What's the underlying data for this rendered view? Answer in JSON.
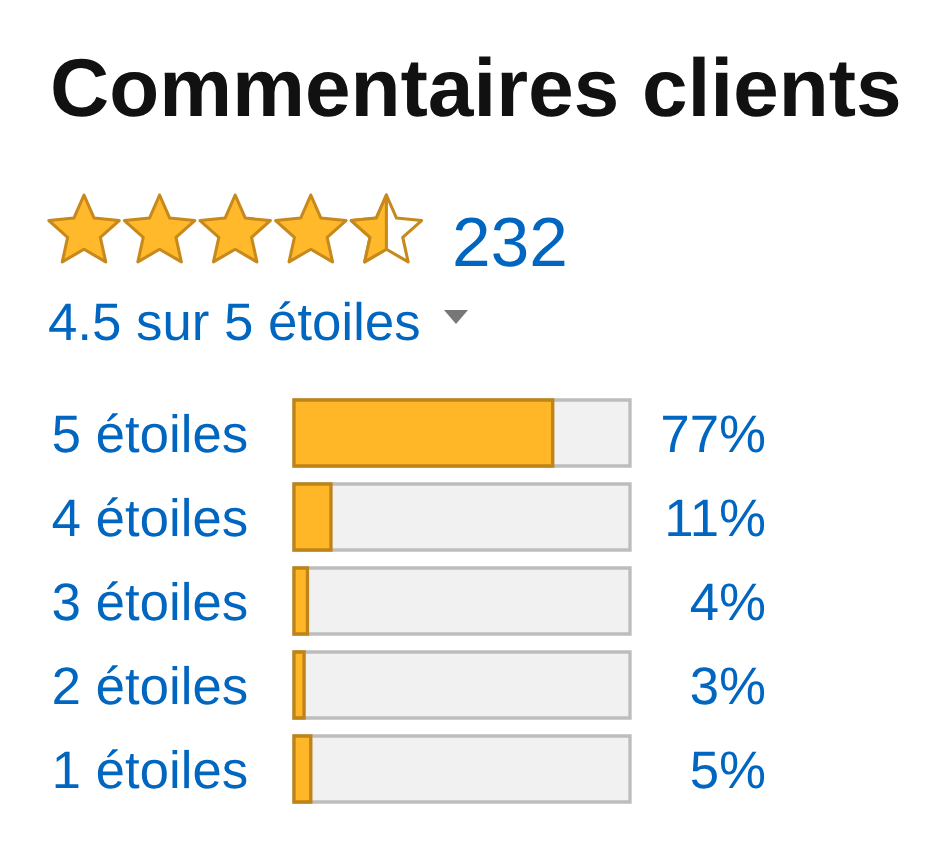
{
  "chart_data": {
    "type": "bar",
    "orientation": "horizontal",
    "title": "Commentaires clients",
    "annotations": [
      "232",
      "4.5 sur 5 étoiles"
    ],
    "categories": [
      "5 étoiles",
      "4 étoiles",
      "3 étoiles",
      "2 étoiles",
      "1 étoiles"
    ],
    "values": [
      77,
      11,
      4,
      3,
      5
    ],
    "value_labels": [
      "77%",
      "11%",
      "4%",
      "3%",
      "5%"
    ],
    "color": "#ffb627",
    "xlim": [
      0,
      100
    ],
    "tick_labels": "y"
  }
}
